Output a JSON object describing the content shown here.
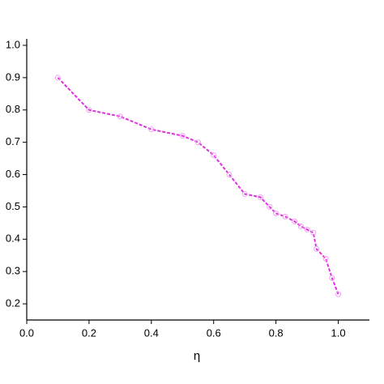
{
  "chart_data": {
    "type": "line",
    "x_label": "η",
    "series": [
      {
        "color": "#e030e0",
        "marker_color": "#f0a0f0",
        "x": [
          0.1,
          0.2,
          0.3,
          0.4,
          0.5,
          0.55,
          0.6,
          0.65,
          0.7,
          0.75,
          0.78,
          0.8,
          0.83,
          0.86,
          0.88,
          0.9,
          0.92,
          0.93,
          0.96,
          0.98,
          1.0
        ],
        "values": [
          0.9,
          0.8,
          0.78,
          0.74,
          0.72,
          0.7,
          0.66,
          0.6,
          0.54,
          0.53,
          0.5,
          0.48,
          0.47,
          0.455,
          0.44,
          0.43,
          0.42,
          0.37,
          0.34,
          0.28,
          0.23
        ]
      }
    ],
    "xlim": [
      0,
      1.1
    ],
    "xticks": [
      {
        "value": 0,
        "label": "0.0"
      },
      0.2,
      0.4,
      0.6,
      0.8,
      {
        "value": 1,
        "label": "1.0"
      }
    ],
    "ylim": [
      0.15,
      1.02
    ],
    "yticks": [
      0.2,
      0.3,
      0.4,
      0.5,
      0.6,
      0.7,
      0.8,
      0.9,
      {
        "value": 1,
        "label": "1.0"
      }
    ]
  }
}
